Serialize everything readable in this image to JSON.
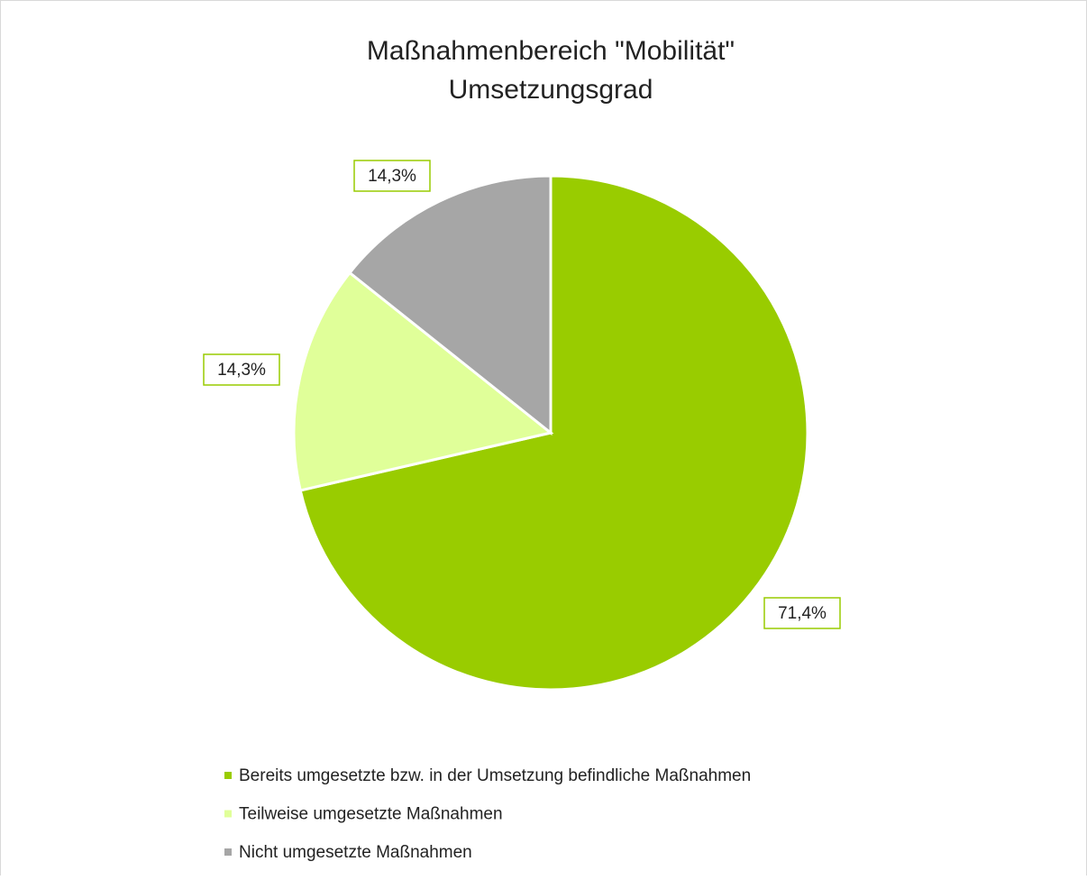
{
  "chart_data": {
    "type": "pie",
    "title": [
      "Maßnahmenbereich \"Mobilität\"",
      "Umsetzungsgrad"
    ],
    "categories": [
      "Bereits umgesetzte bzw. in der Umsetzung befindliche Maßnahmen",
      "Teilweise umgesetzte Maßnahmen",
      "Nicht umgesetzte Maßnahmen"
    ],
    "values": [
      71.4,
      14.3,
      14.3
    ],
    "value_labels": [
      "71,4%",
      "14,3%",
      "14,3%"
    ],
    "colors": [
      "#99cc00",
      "#e0ff99",
      "#a6a6a6"
    ],
    "legend": "bottom"
  }
}
